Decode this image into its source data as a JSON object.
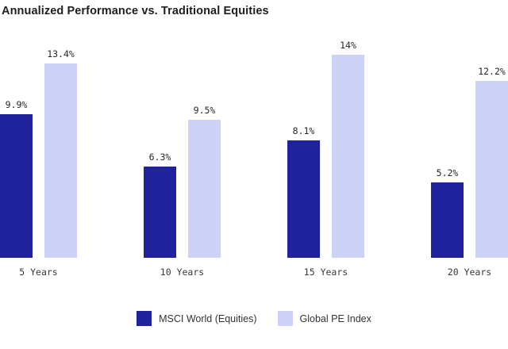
{
  "title": "Annualized Performance vs. Traditional Equities",
  "colors": {
    "background": "#ffffff",
    "msci_world": "#20219d",
    "global_pe": "#cdd3f6",
    "title_text": "#1e1e1e",
    "value_text": "#262626",
    "axis_text": "#3a3a3a"
  },
  "legend": {
    "items": [
      {
        "label": "MSCI World (Equities)",
        "color": "#20219d"
      },
      {
        "label": "Global PE Index",
        "color": "#cdd3f6"
      }
    ]
  },
  "chart_data": {
    "type": "bar",
    "title": "Annualized Performance vs. Traditional Equities",
    "categories": [
      "5 Years",
      "10 Years",
      "15 Years",
      "20 Years"
    ],
    "series": [
      {
        "name": "MSCI World (Equities)",
        "color": "#20219d",
        "values": [
          9.9,
          6.3,
          8.1,
          5.2
        ],
        "labels": [
          "9.9%",
          "6.3%",
          "8.1%",
          "5.2%"
        ]
      },
      {
        "name": "Global PE Index",
        "color": "#cdd3f6",
        "values": [
          13.4,
          9.5,
          14,
          12.2
        ],
        "labels": [
          "13.4%",
          "9.5%",
          "14%",
          "12.2%"
        ]
      }
    ],
    "xlabel": "",
    "ylabel": "",
    "ylim": [
      0,
      14
    ],
    "grid": false,
    "value_labels_shown": true,
    "legend_position": "bottom"
  }
}
